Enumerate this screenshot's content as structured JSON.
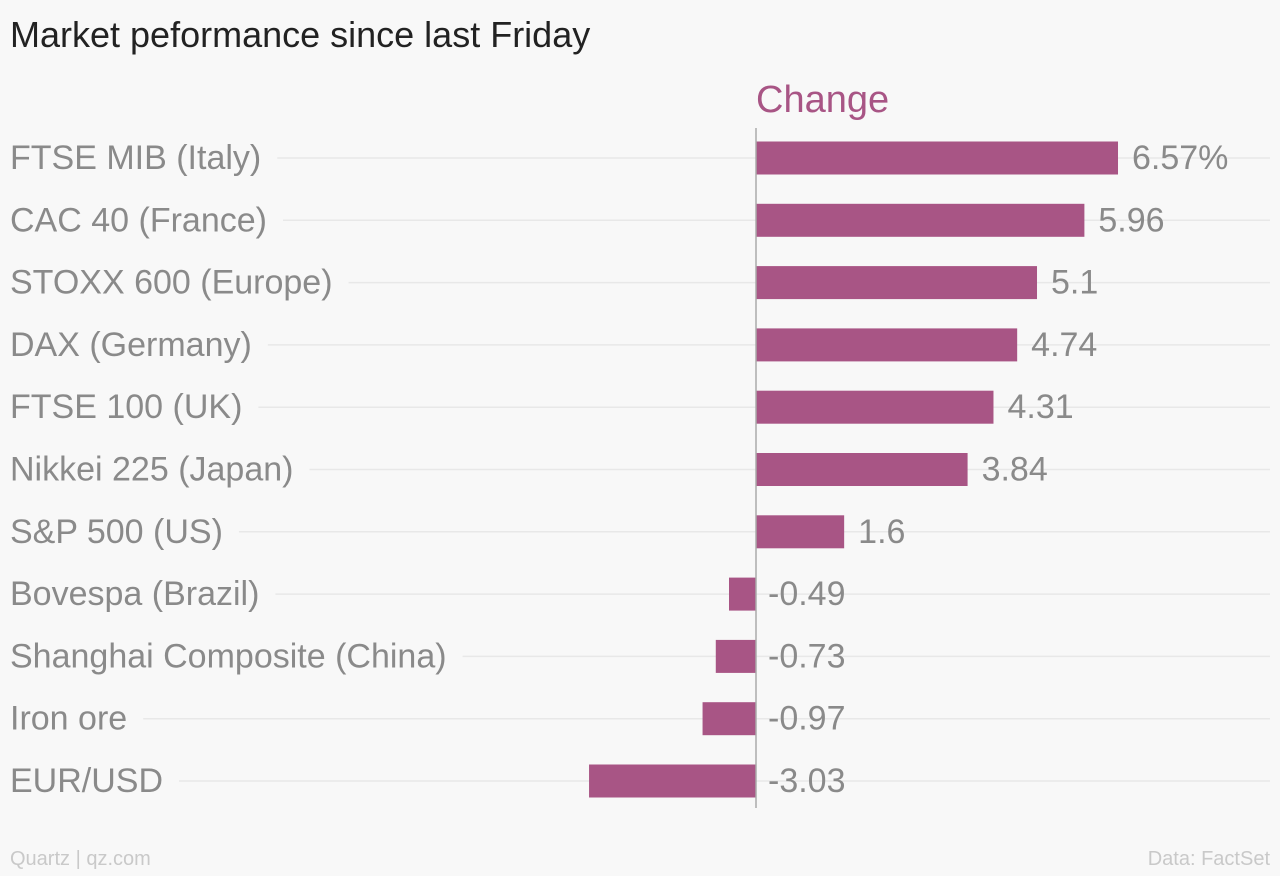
{
  "title": "Market peformance since last Friday",
  "footer": {
    "credit": "Quartz | qz.com",
    "source": "Data: FactSet"
  },
  "colors": {
    "bar": "#a85585",
    "label": "#8a8a8a",
    "gridline": "#e8e8e8",
    "axis": "#aaaaaa"
  },
  "chart_data": {
    "type": "bar",
    "orientation": "horizontal",
    "categories": [
      "FTSE MIB (Italy)",
      "CAC 40 (France)",
      "STOXX 600 (Europe)",
      "DAX (Germany)",
      "FTSE 100 (UK)",
      "Nikkei 225 (Japan)",
      "S&P 500 (US)",
      "Bovespa (Brazil)",
      "Shanghai Composite (China)",
      "Iron ore",
      "EUR/USD"
    ],
    "series": [
      {
        "name": "Change",
        "values": [
          6.57,
          5.96,
          5.1,
          4.74,
          4.31,
          3.84,
          1.6,
          -0.49,
          -0.73,
          -0.97,
          -3.03
        ]
      }
    ],
    "value_labels": [
      "6.57%",
      "5.96",
      "5.1",
      "4.74",
      "4.31",
      "3.84",
      "1.6",
      "-0.49",
      "-0.73",
      "-0.97",
      "-3.03"
    ],
    "xlim": [
      -3.03,
      6.57
    ],
    "grid": true,
    "legend": "top"
  }
}
